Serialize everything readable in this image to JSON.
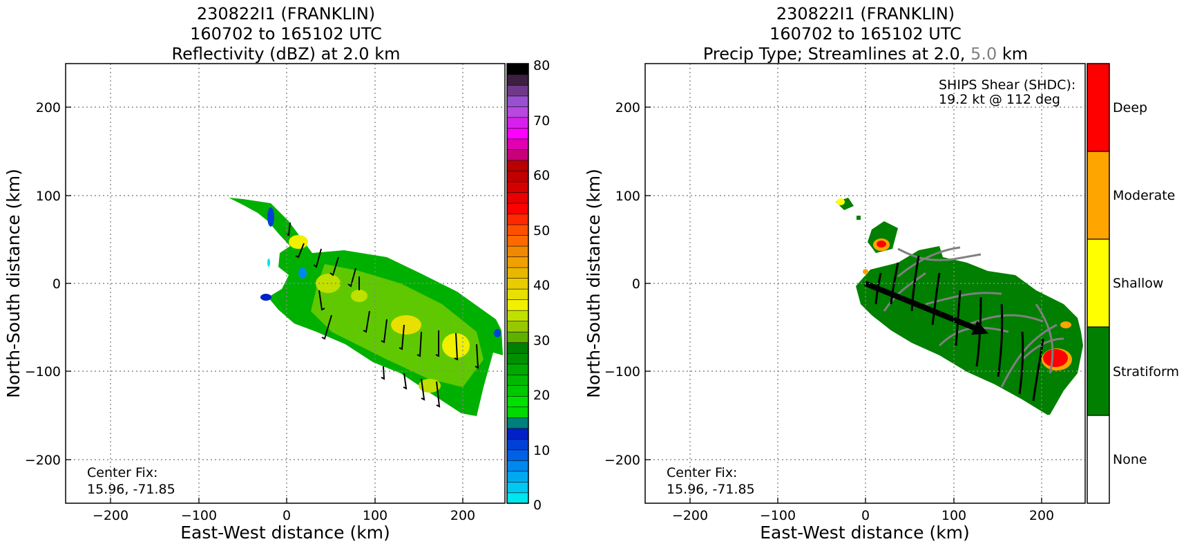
{
  "colors": {
    "stratiform": "#007f00",
    "shallow": "#ffff00",
    "moderate": "#ffa500",
    "deep": "#ff0000",
    "none": "#ffffff",
    "streamline_2km": "#000000",
    "streamline_5km": "#808080"
  },
  "chart_data": [
    {
      "type": "heatmap",
      "title_line1": "230822I1 (FRANKLIN)",
      "title_line2": "160702 to 165102 UTC",
      "title_line3": "Reflectivity (dBZ) at 2.0 km",
      "xlabel": "East-West distance (km)",
      "ylabel": "North-South distance (km)",
      "xlim": [
        -250,
        250
      ],
      "ylim": [
        -250,
        250
      ],
      "x_ticks": [
        "−200",
        "−100",
        "0",
        "100",
        "200"
      ],
      "y_ticks": [
        "200",
        "100",
        "0",
        "−100",
        "−200"
      ],
      "grid": true,
      "annotation_line1": "Center Fix:",
      "annotation_line2": "15.96, -71.85",
      "colorbar": {
        "range": [
          0,
          80
        ],
        "ticks": [
          "80",
          "70",
          "60",
          "50",
          "40",
          "30",
          "20",
          "10",
          "0"
        ],
        "colors": [
          "#00e5ee",
          "#00c8f0",
          "#00a8f0",
          "#0088ee",
          "#0060e6",
          "#0040d8",
          "#0020c8",
          "#00807a",
          "#00d800",
          "#00e000",
          "#00c800",
          "#00b800",
          "#00a800",
          "#009000",
          "#008000",
          "#60b000",
          "#98c800",
          "#c0e000",
          "#f0f000",
          "#e8e000",
          "#e8cc00",
          "#e8b800",
          "#f0a000",
          "#f08800",
          "#ff6a00",
          "#ff5000",
          "#ff2800",
          "#ff0000",
          "#e80000",
          "#d40000",
          "#c00000",
          "#b80000",
          "#c8007a",
          "#e000b0",
          "#ff00ff",
          "#d820ee",
          "#b848e0",
          "#9850d0",
          "#703888",
          "#3c2040",
          "#000000"
        ]
      }
    },
    {
      "type": "heatmap",
      "title_line1": "230822I1 (FRANKLIN)",
      "title_line2": "160702 to 165102 UTC",
      "title_line3_a": "Precip Type; Streamlines at 2.0,",
      "title_line3_b": "5.0",
      "title_line3_c": "km",
      "xlabel": "East-West distance (km)",
      "ylabel": "North-South distance (km)",
      "xlim": [
        -250,
        250
      ],
      "ylim": [
        -250,
        250
      ],
      "x_ticks": [
        "−200",
        "−100",
        "0",
        "100",
        "200"
      ],
      "y_ticks": [
        "200",
        "100",
        "0",
        "−100",
        "−200"
      ],
      "grid": true,
      "shear_line1": "SHIPS Shear (SHDC):",
      "shear_line2": "19.2 kt @ 112 deg",
      "shear_vector": {
        "from": [
          0,
          0
        ],
        "to": [
          140,
          -57
        ]
      },
      "annotation_line1": "Center Fix:",
      "annotation_line2": "15.96, -71.85",
      "categories": [
        "Deep",
        "Moderate",
        "Shallow",
        "Stratiform",
        "None"
      ]
    }
  ]
}
